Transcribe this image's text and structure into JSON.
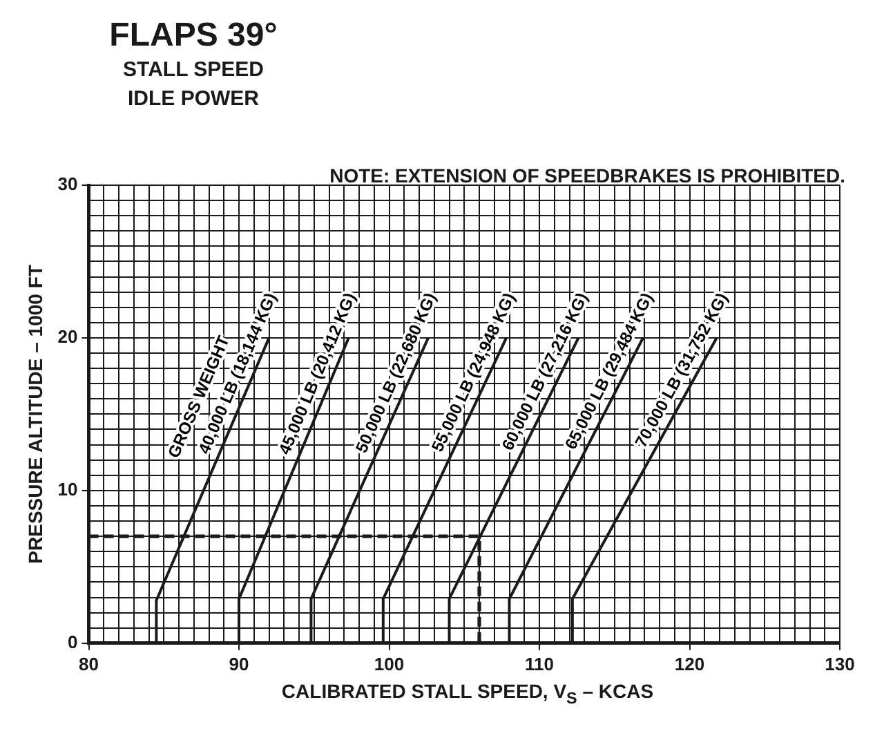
{
  "chart_data": {
    "type": "line",
    "title": "FLAPS 39°",
    "subtitle": "STALL SPEED\nIDLE POWER",
    "annotations": [
      "NOTE:  EXTENSION OF SPEEDBRAKES IS PROHIBITED."
    ],
    "xlabel": "CALIBRATED STALL SPEED, V$_{S}$ – KCAS",
    "ylabel": "PRESSURE ALTITUDE – 1000 FT",
    "legend_title": "GROSS WEIGHT",
    "xlim": [
      80,
      130
    ],
    "ylim": [
      0,
      30
    ],
    "xticks": [
      80,
      {
        "value": 81,
        "label": null
      },
      {
        "value": 82,
        "label": null
      },
      {
        "value": 83,
        "label": null
      },
      {
        "value": 84,
        "label": null
      },
      {
        "value": 85,
        "label": null
      },
      {
        "value": 86,
        "label": null
      },
      {
        "value": 87,
        "label": null
      },
      {
        "value": 88,
        "label": null
      },
      {
        "value": 89,
        "label": null
      },
      90,
      {
        "value": 91,
        "label": null
      },
      {
        "value": 92,
        "label": null
      },
      {
        "value": 93,
        "label": null
      },
      {
        "value": 94,
        "label": null
      },
      {
        "value": 95,
        "label": null
      },
      {
        "value": 96,
        "label": null
      },
      {
        "value": 97,
        "label": null
      },
      {
        "value": 98,
        "label": null
      },
      {
        "value": 99,
        "label": null
      },
      100,
      {
        "value": 101,
        "label": null
      },
      {
        "value": 102,
        "label": null
      },
      {
        "value": 103,
        "label": null
      },
      {
        "value": 104,
        "label": null
      },
      {
        "value": 105,
        "label": null
      },
      {
        "value": 106,
        "label": null
      },
      {
        "value": 107,
        "label": null
      },
      {
        "value": 108,
        "label": null
      },
      {
        "value": 109,
        "label": null
      },
      110,
      {
        "value": 111,
        "label": null
      },
      {
        "value": 112,
        "label": null
      },
      {
        "value": 113,
        "label": null
      },
      {
        "value": 114,
        "label": null
      },
      {
        "value": 115,
        "label": null
      },
      {
        "value": 116,
        "label": null
      },
      {
        "value": 117,
        "label": null
      },
      {
        "value": 118,
        "label": null
      },
      {
        "value": 119,
        "label": null
      },
      120,
      {
        "value": 121,
        "label": null
      },
      {
        "value": 122,
        "label": null
      },
      {
        "value": 123,
        "label": null
      },
      {
        "value": 124,
        "label": null
      },
      {
        "value": 125,
        "label": null
      },
      {
        "value": 126,
        "label": null
      },
      {
        "value": 127,
        "label": null
      },
      {
        "value": 128,
        "label": null
      },
      {
        "value": 129,
        "label": null
      },
      130
    ],
    "yticks": [
      0,
      {
        "value": 1,
        "label": null
      },
      {
        "value": 2,
        "label": null
      },
      {
        "value": 3,
        "label": null
      },
      {
        "value": 4,
        "label": null
      },
      {
        "value": 5,
        "label": null
      },
      {
        "value": 6,
        "label": null
      },
      {
        "value": 7,
        "label": null
      },
      {
        "value": 8,
        "label": null
      },
      {
        "value": 9,
        "label": null
      },
      10,
      {
        "value": 11,
        "label": null
      },
      {
        "value": 12,
        "label": null
      },
      {
        "value": 13,
        "label": null
      },
      {
        "value": 14,
        "label": null
      },
      {
        "value": 15,
        "label": null
      },
      {
        "value": 16,
        "label": null
      },
      {
        "value": 17,
        "label": null
      },
      {
        "value": 18,
        "label": null
      },
      {
        "value": 19,
        "label": null
      },
      20,
      {
        "value": 21,
        "label": null
      },
      {
        "value": 22,
        "label": null
      },
      {
        "value": 23,
        "label": null
      },
      {
        "value": 24,
        "label": null
      },
      {
        "value": 25,
        "label": null
      },
      {
        "value": 26,
        "label": null
      },
      {
        "value": 27,
        "label": null
      },
      {
        "value": 28,
        "label": null
      },
      {
        "value": 29,
        "label": null
      },
      30
    ],
    "grid": true,
    "legend": false,
    "marker": "none",
    "line_style": "solid",
    "series": [
      {
        "name": "40,000 LB (18,144 KG)",
        "color": "#1a1a1a",
        "x": [
          84.5,
          84.5,
          92
        ],
        "values": [
          0,
          2.8,
          20
        ]
      },
      {
        "name": "45,000 LB (20,412 KG)",
        "color": "#1a1a1a",
        "x": [
          90,
          90,
          97.3
        ],
        "values": [
          0,
          2.9,
          20
        ]
      },
      {
        "name": "50,000 LB (22,680 KG)",
        "color": "#1a1a1a",
        "x": [
          94.8,
          94.8,
          102.6
        ],
        "values": [
          0,
          2.9,
          20
        ]
      },
      {
        "name": "55,000 LB (24,948 KG)",
        "color": "#1a1a1a",
        "x": [
          99.6,
          99.6,
          107.8
        ],
        "values": [
          0,
          2.9,
          20
        ]
      },
      {
        "name": "60,000 LB (27,216 KG)",
        "color": "#1a1a1a",
        "x": [
          104,
          104,
          112.6
        ],
        "values": [
          0,
          2.9,
          20
        ]
      },
      {
        "name": "65,000 LB (29,484 KG)",
        "color": "#1a1a1a",
        "x": [
          108,
          108,
          116.9
        ],
        "values": [
          0,
          2.9,
          20
        ]
      },
      {
        "name": "70,000 LB (31,752 KG)",
        "color": "#1a1a1a",
        "x": [
          112.2,
          112.2,
          121.8
        ],
        "values": [
          0,
          2.9,
          20
        ]
      },
      {
        "color": "#1a1a1a",
        "line_style": "dashed",
        "x": [
          80,
          106,
          106
        ],
        "values": [
          7,
          7,
          0
        ]
      }
    ]
  }
}
